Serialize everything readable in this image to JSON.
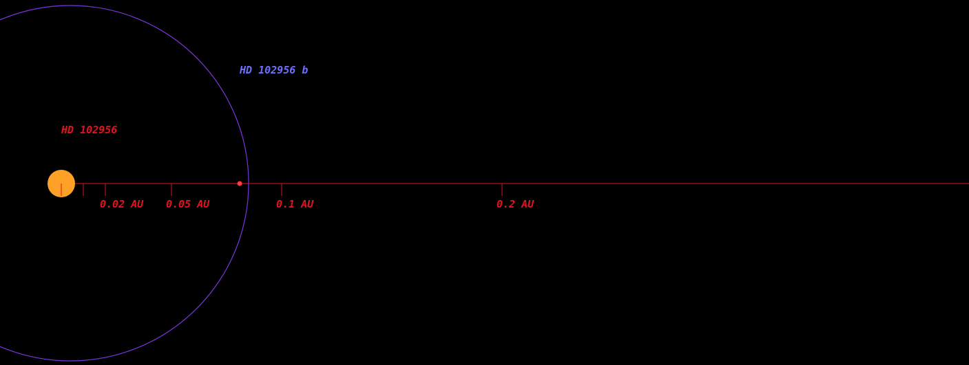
{
  "star": {
    "name": "HD 102956"
  },
  "planet": {
    "name": "HD 102956 b"
  },
  "scale": {
    "ticks": [
      {
        "value": 0.02,
        "label": "0.02 AU"
      },
      {
        "value": 0.05,
        "label": "0.05 AU"
      },
      {
        "value": 0.1,
        "label": "0.1 AU"
      },
      {
        "value": 0.2,
        "label": "0.2 AU"
      }
    ]
  }
}
